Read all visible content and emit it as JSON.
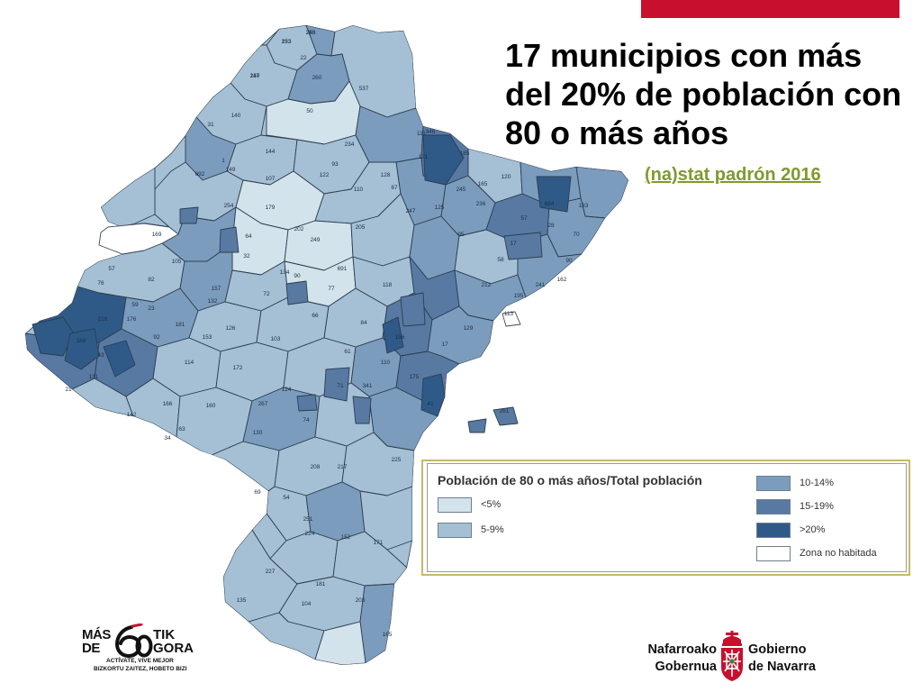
{
  "header": {
    "title_lines": [
      "17 municipios con más",
      "del 20% de población con",
      "80 o más años"
    ],
    "source_link": "(na)stat padrón 2016",
    "accent_color": "#c8102e",
    "link_color": "#7f9a2d"
  },
  "legend": {
    "title": "Población de 80 o más años/Total población",
    "items": [
      {
        "label": "<5%",
        "color": "#d3e3ec"
      },
      {
        "label": "5-9%",
        "color": "#a5bfd4"
      },
      {
        "label": "10-14%",
        "color": "#7c9cbd"
      },
      {
        "label": "15-19%",
        "color": "#5879a2"
      },
      {
        "label": ">20%",
        "color": "#2f5a87"
      },
      {
        "label": "Zona no habitada",
        "color": "#ffffff"
      }
    ]
  },
  "map": {
    "municipality_labels": [
      "153",
      "250",
      "117",
      "22",
      "260",
      "537",
      "50",
      "140",
      "31",
      "149",
      "144",
      "346",
      "185",
      "120",
      "692",
      "1",
      "93",
      "110",
      "128",
      "247",
      "125",
      "236",
      "17",
      "95",
      "90",
      "28",
      "58",
      "169",
      "134",
      "691",
      "118",
      "212",
      "241",
      "113",
      "111",
      "245",
      "694",
      "183",
      "76",
      "23",
      "132",
      "181",
      "59",
      "172",
      "103",
      "124",
      "71",
      "341",
      "131",
      "21",
      "166",
      "160",
      "267",
      "74",
      "41",
      "261",
      "142",
      "63",
      "130",
      "34",
      "208",
      "217",
      "225",
      "69",
      "54",
      "251",
      "224",
      "152",
      "171",
      "227",
      "181",
      "135",
      "203",
      "165",
      "104",
      "157",
      "179",
      "202",
      "205",
      "67",
      "107",
      "254",
      "64",
      "249",
      "32",
      "90",
      "77",
      "72",
      "105",
      "82",
      "57",
      "176",
      "92",
      "216",
      "188",
      "43",
      "66",
      "126",
      "153",
      "114",
      "84",
      "156",
      "17",
      "129",
      "122",
      "234",
      "121",
      "165",
      "57",
      "70",
      "162",
      "195",
      "110",
      "175",
      "61",
      "233",
      "245",
      "240"
    ]
  },
  "logos": {
    "left": {
      "mas": "MÁS",
      "de": "DE",
      "tik": "TIK",
      "gora": "GORA",
      "tagline_1": "ACTÍVATE, VIVE MEJOR",
      "tagline_2": "BIZKORTU ZAITEZ, HOBETO BIZI",
      "icon": "sixty-logo-icon"
    },
    "right": {
      "basque_line_1": "Nafarroako",
      "basque_line_2": "Gobernua",
      "spanish_line_1": "Gobierno",
      "spanish_line_2": "de Navarra",
      "icon": "navarra-shield-icon",
      "color": "#c8102e"
    }
  }
}
